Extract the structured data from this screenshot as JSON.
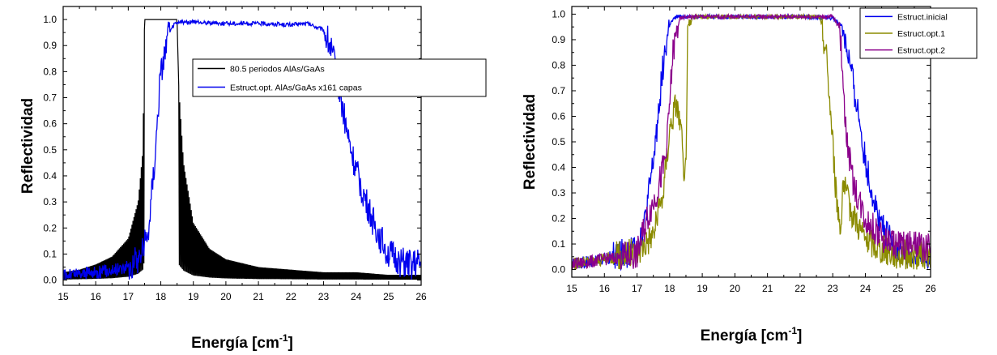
{
  "chart_data": [
    {
      "type": "line",
      "xlabel": "Energía [cm",
      "xlabel_sup": "-1",
      "xlabel_end": "]",
      "ylabel": "Reflectividad",
      "xlim": [
        15,
        26
      ],
      "ylim": [
        -0.02,
        1.05
      ],
      "xticks": [
        15,
        16,
        17,
        18,
        19,
        20,
        21,
        22,
        23,
        24,
        25,
        26
      ],
      "yticks": [
        0.0,
        0.1,
        0.2,
        0.3,
        0.4,
        0.5,
        0.6,
        0.7,
        0.8,
        0.9,
        1.0
      ],
      "ytick_labels": [
        "0.0",
        "0.1",
        "0.2",
        "0.3",
        "0.4",
        "0.5",
        "0.6",
        "0.7",
        "0.8",
        "0.9",
        "1.0"
      ],
      "grid": false,
      "legend_position": "center-right",
      "series": [
        {
          "name": "80.5 periodos AlAs/GaAs",
          "color": "#000000",
          "style": "oscillating",
          "band": [
            17.5,
            18.55
          ],
          "x": [
            15.0,
            15.5,
            16.0,
            16.5,
            17.0,
            17.3,
            17.45,
            17.5,
            17.55,
            18.5,
            18.55,
            18.7,
            19.0,
            19.5,
            20.0,
            21.0,
            22.0,
            23.0,
            24.0,
            25.0,
            26.0
          ],
          "y": [
            0.03,
            0.04,
            0.06,
            0.09,
            0.16,
            0.3,
            0.5,
            1.0,
            1.0,
            1.0,
            0.75,
            0.45,
            0.22,
            0.12,
            0.08,
            0.05,
            0.04,
            0.03,
            0.03,
            0.02,
            0.02
          ]
        },
        {
          "name": "Estruct.opt. AlAs/GaAs x161 capas",
          "color": "#0000ee",
          "style": "noisy",
          "x": [
            15.0,
            16.0,
            17.0,
            17.3,
            17.6,
            17.8,
            18.0,
            18.2,
            18.4,
            18.6,
            19.0,
            20.0,
            21.0,
            22.0,
            22.5,
            23.0,
            23.2,
            23.4,
            23.6,
            23.8,
            24.0,
            24.3,
            24.6,
            25.0,
            25.5,
            26.0
          ],
          "y": [
            0.02,
            0.03,
            0.05,
            0.08,
            0.17,
            0.45,
            0.8,
            0.93,
            0.98,
            0.99,
            0.99,
            0.985,
            0.985,
            0.98,
            0.985,
            0.96,
            0.9,
            0.8,
            0.65,
            0.52,
            0.42,
            0.3,
            0.2,
            0.1,
            0.06,
            0.06
          ]
        }
      ]
    },
    {
      "type": "line",
      "xlabel": "Energía [cm",
      "xlabel_sup": "-1",
      "xlabel_end": "]",
      "ylabel": "Reflectividad",
      "xlim": [
        15,
        26
      ],
      "ylim": [
        -0.03,
        1.03
      ],
      "xticks": [
        15,
        16,
        17,
        18,
        19,
        20,
        21,
        22,
        23,
        24,
        25,
        26
      ],
      "yticks": [
        0.0,
        0.1,
        0.2,
        0.3,
        0.4,
        0.5,
        0.6,
        0.7,
        0.8,
        0.9,
        1.0
      ],
      "ytick_labels": [
        "0.0",
        "0.1",
        "0.2",
        "0.3",
        "0.4",
        "0.5",
        "0.6",
        "0.7",
        "0.8",
        "0.9",
        "1.0"
      ],
      "grid": false,
      "legend_position": "top-right",
      "series": [
        {
          "name": "Estruct.inicial",
          "color": "#0000ee",
          "style": "noisy",
          "x": [
            15.0,
            16.0,
            16.8,
            17.2,
            17.5,
            17.8,
            18.0,
            18.2,
            18.4,
            19.0,
            20.0,
            21.0,
            22.0,
            23.0,
            23.3,
            23.5,
            23.8,
            24.0,
            24.3,
            24.6,
            25.0,
            25.5,
            26.0
          ],
          "y": [
            0.02,
            0.04,
            0.07,
            0.15,
            0.42,
            0.8,
            0.96,
            0.99,
            0.99,
            0.99,
            0.99,
            0.99,
            0.99,
            0.985,
            0.95,
            0.82,
            0.6,
            0.42,
            0.25,
            0.14,
            0.07,
            0.04,
            0.03
          ]
        },
        {
          "name": "Estruct.opt.1",
          "color": "#8b8b00",
          "style": "noisy",
          "x": [
            15.0,
            16.0,
            17.0,
            17.5,
            17.8,
            18.0,
            18.2,
            18.35,
            18.45,
            18.5,
            18.55,
            18.7,
            19.0,
            20.0,
            21.0,
            22.0,
            22.6,
            22.8,
            23.0,
            23.1,
            23.25,
            23.3,
            23.5,
            24.0,
            24.5,
            25.0,
            26.0
          ],
          "y": [
            0.02,
            0.04,
            0.07,
            0.14,
            0.3,
            0.55,
            0.66,
            0.55,
            0.3,
            0.45,
            0.9,
            0.99,
            0.99,
            0.99,
            0.99,
            0.99,
            0.99,
            0.85,
            0.5,
            0.3,
            0.15,
            0.35,
            0.25,
            0.12,
            0.08,
            0.06,
            0.05
          ]
        },
        {
          "name": "Estruct.opt.2",
          "color": "#8b008b",
          "style": "noisy",
          "x": [
            15.0,
            16.0,
            17.0,
            17.3,
            17.6,
            17.9,
            18.1,
            18.3,
            18.5,
            19.0,
            20.0,
            21.0,
            22.0,
            23.0,
            23.2,
            23.3,
            23.4,
            23.6,
            24.0,
            24.5,
            25.0,
            26.0
          ],
          "y": [
            0.02,
            0.04,
            0.06,
            0.2,
            0.3,
            0.45,
            0.85,
            0.98,
            0.99,
            0.99,
            0.99,
            0.99,
            0.99,
            0.99,
            0.95,
            0.8,
            0.55,
            0.35,
            0.2,
            0.12,
            0.1,
            0.08
          ]
        }
      ]
    }
  ]
}
